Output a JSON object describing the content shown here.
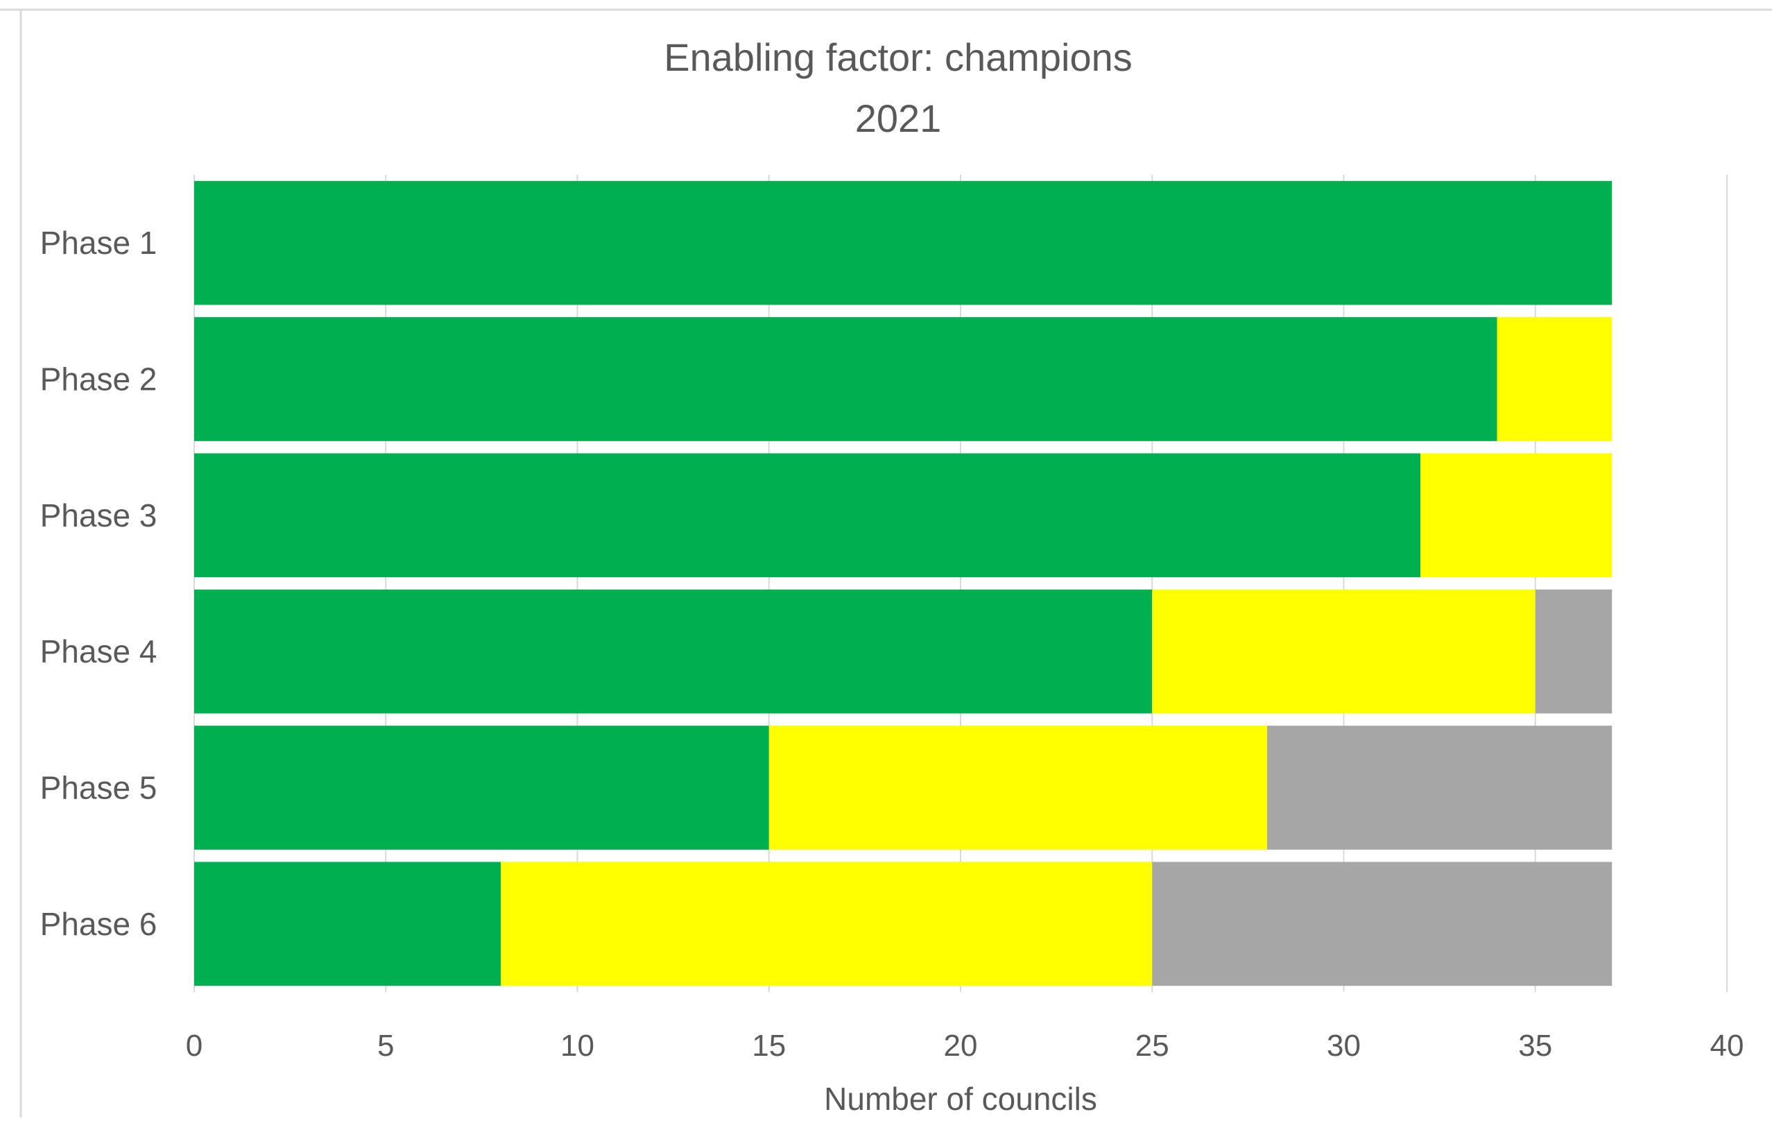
{
  "chart_data": {
    "type": "bar",
    "orientation": "horizontal",
    "stacked": true,
    "title": "Enabling factor: champions",
    "subtitle": "2021",
    "xlabel": "Number of councils",
    "ylabel": "",
    "categories": [
      "Phase 1",
      "Phase 2",
      "Phase 3",
      "Phase 4",
      "Phase 5",
      "Phase 6"
    ],
    "series": [
      {
        "color": "#00B050",
        "values": [
          37,
          34,
          32,
          25,
          15,
          8
        ]
      },
      {
        "color": "#FFFF00",
        "values": [
          0,
          3,
          5,
          10,
          13,
          17
        ]
      },
      {
        "color": "#A6A6A6",
        "values": [
          0,
          0,
          0,
          2,
          9,
          12
        ]
      }
    ],
    "xlim": [
      0,
      40
    ],
    "xticks": [
      "0",
      "5",
      "10",
      "15",
      "20",
      "25",
      "30",
      "35",
      "40"
    ],
    "grid": "vertical",
    "legend": "none"
  }
}
